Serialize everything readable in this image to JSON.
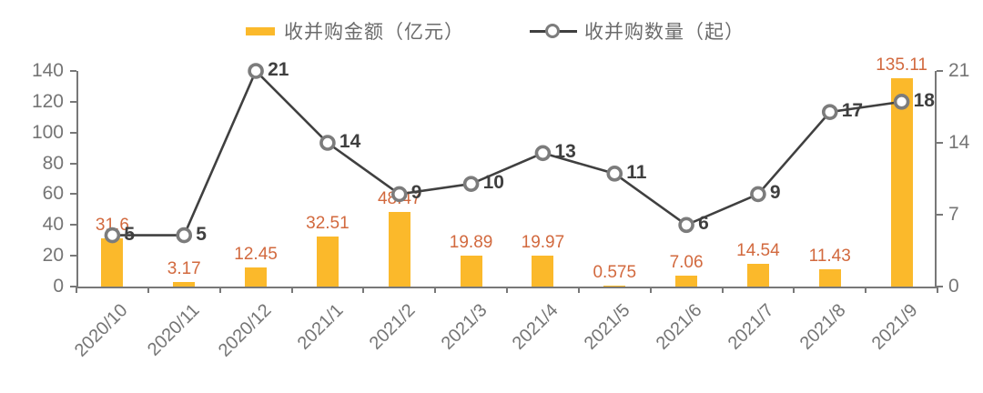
{
  "legend": {
    "amount_label": "收并购金额（亿元）",
    "count_label": "收并购数量（起）"
  },
  "chart_data": {
    "type": "combo",
    "title": "",
    "categories": [
      "2020/10",
      "2020/11",
      "2020/12",
      "2021/1",
      "2021/2",
      "2021/3",
      "2021/4",
      "2021/5",
      "2021/6",
      "2021/7",
      "2021/8",
      "2021/9"
    ],
    "series": [
      {
        "name": "收并购金额（亿元）",
        "type": "bar",
        "axis": "left",
        "values": [
          31.6,
          3.17,
          12.45,
          32.51,
          48.47,
          19.89,
          19.97,
          0.575,
          7.06,
          14.54,
          11.43,
          135.11
        ]
      },
      {
        "name": "收并购数量（起）",
        "type": "line",
        "axis": "right",
        "values": [
          5,
          5,
          21,
          14,
          9,
          10,
          13,
          11,
          6,
          9,
          17,
          18
        ]
      }
    ],
    "bar_value_labels": [
      "31.6",
      "3.17",
      "12.45",
      "32.51",
      "48.47",
      "19.89",
      "19.97",
      "0.575",
      "7.06",
      "14.54",
      "11.43",
      "135.11"
    ],
    "line_value_labels": [
      "5",
      "5",
      "21",
      "14",
      "9",
      "10",
      "13",
      "11",
      "6",
      "9",
      "17",
      "18"
    ],
    "left_axis": {
      "min": 0,
      "max": 140,
      "ticks": [
        0,
        20,
        40,
        60,
        80,
        100,
        120,
        140
      ]
    },
    "right_axis": {
      "min": 0,
      "max": 21,
      "ticks": [
        0,
        7,
        14,
        21
      ]
    },
    "legend_position": "top-center",
    "grid": false,
    "colors": {
      "bar": "#FBB92B",
      "bar_label": "#D2693E",
      "line": "#404040",
      "marker_ring": "#7C7C7C",
      "marker_fill": "#FFFFFF",
      "line_label": "#3F3F3F",
      "axis": "#787878",
      "tick_label": "#757575",
      "legend_text": "#6B6B6B"
    }
  }
}
